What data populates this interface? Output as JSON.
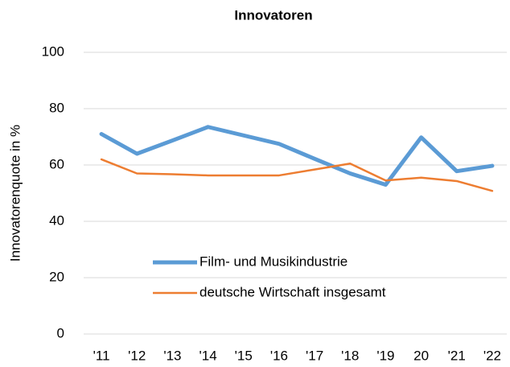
{
  "chart_data": {
    "type": "line",
    "title": "Innovatoren",
    "y_label": "Innovatorenquote in %",
    "categories": [
      "'11",
      "'12",
      "'13",
      "'14",
      "'15",
      "'16",
      "'17",
      "'18",
      "'19",
      "20",
      "'21",
      "'22"
    ],
    "series": [
      {
        "name": "Film- und Musikindustrie",
        "color": "#5b9bd5",
        "values": [
          71,
          64,
          68.7,
          73.5,
          70.5,
          67.5,
          62.2,
          57,
          53,
          69.8,
          57.8,
          59.7
        ]
      },
      {
        "name": "deutsche Wirtschaft insgesamt",
        "color": "#ed7d31",
        "values": [
          62,
          57,
          56.7,
          56.3,
          56.3,
          56.3,
          58.4,
          60.5,
          54.5,
          55.5,
          54.3,
          50.8
        ]
      }
    ],
    "ylim": [
      0,
      100
    ],
    "yticks": [
      0,
      20,
      40,
      60,
      80,
      100
    ],
    "grid": true
  }
}
